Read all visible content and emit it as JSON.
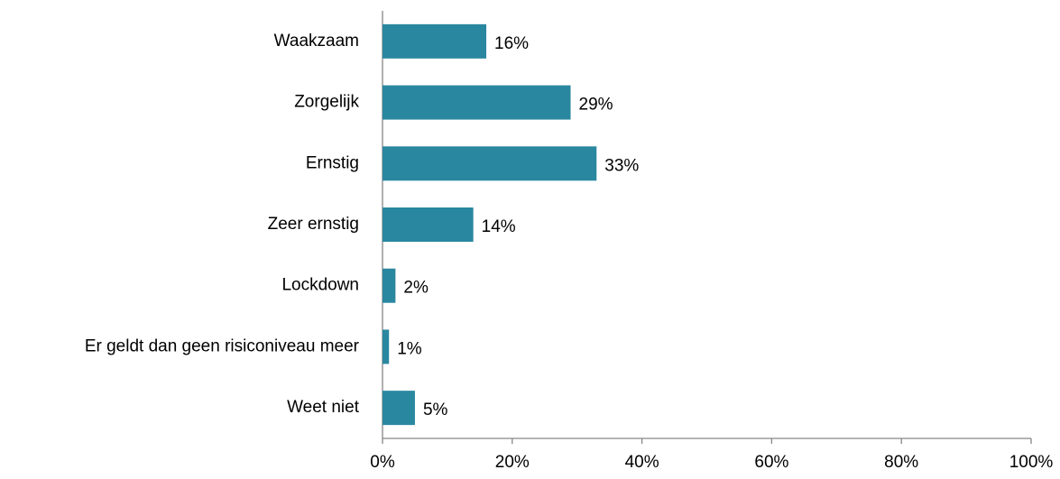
{
  "chart_data": {
    "type": "bar",
    "orientation": "horizontal",
    "categories": [
      "Waakzaam",
      "Zorgelijk",
      "Ernstig",
      "Zeer ernstig",
      "Lockdown",
      "Er geldt dan geen risiconiveau meer",
      "Weet niet"
    ],
    "values": [
      16,
      29,
      33,
      14,
      2,
      1,
      5
    ],
    "value_labels": [
      "16%",
      "29%",
      "33%",
      "14%",
      "2%",
      "1%",
      "5%"
    ],
    "color": "#2a87a0",
    "xlim": [
      0,
      100
    ],
    "xticks": [
      {
        "value": 0,
        "label": "0%"
      },
      {
        "value": 20,
        "label": "20%"
      },
      {
        "value": 40,
        "label": "40%"
      },
      {
        "value": 60,
        "label": "60%"
      },
      {
        "value": 80,
        "label": "80%"
      },
      {
        "value": 100,
        "label": "100%"
      }
    ],
    "grid": false
  }
}
